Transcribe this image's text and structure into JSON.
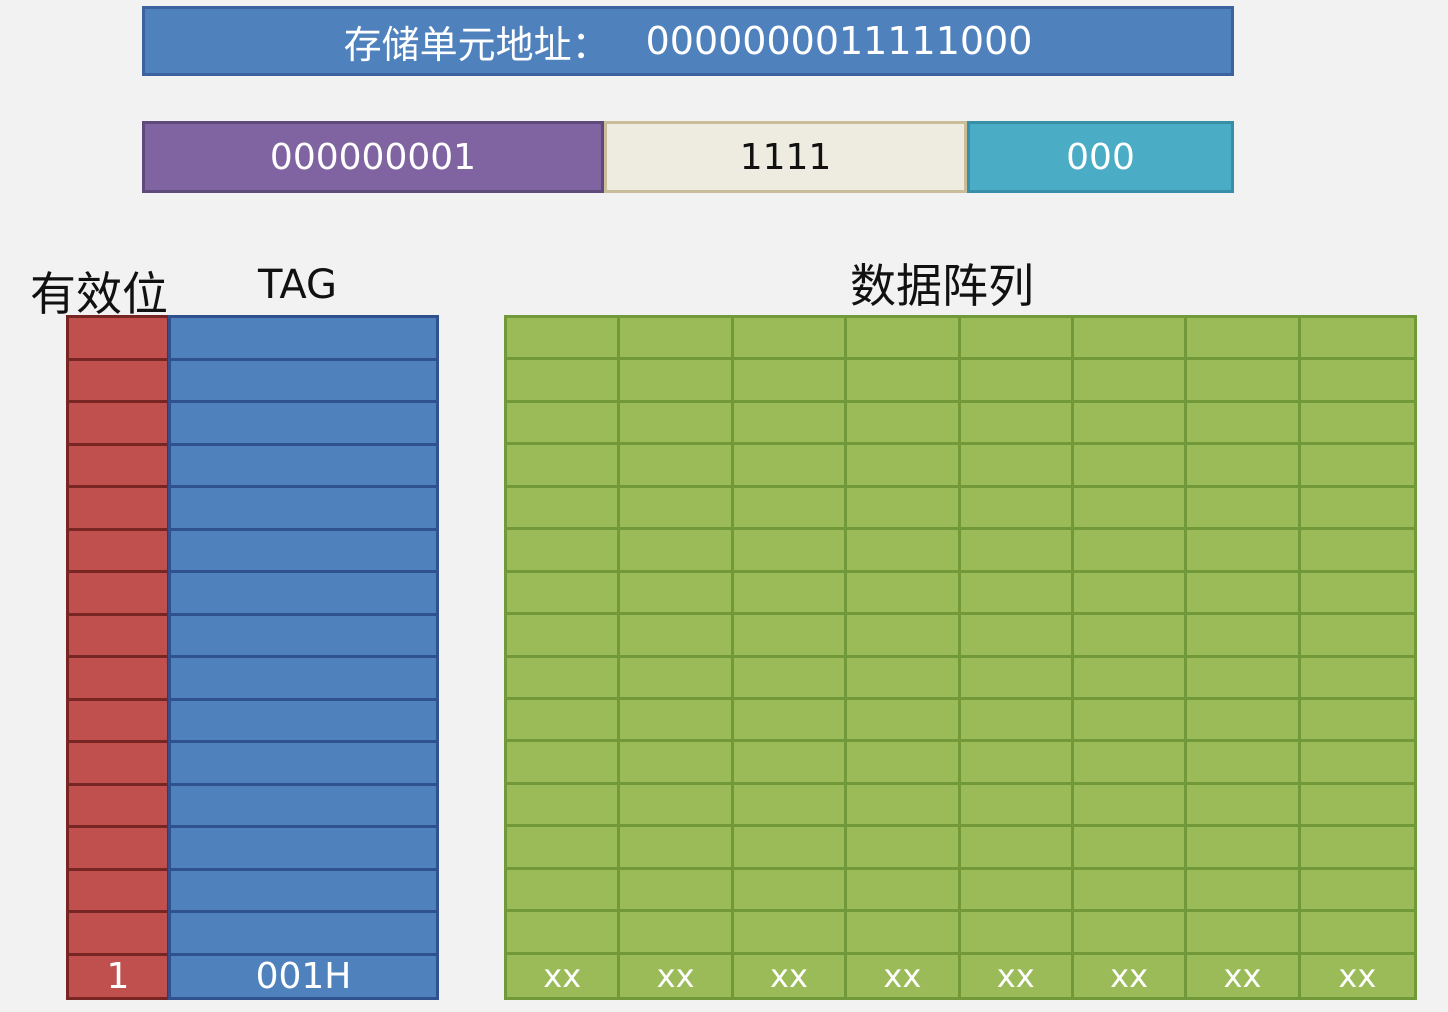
{
  "address": {
    "label": "存储单元地址：",
    "value": "0000000011111000"
  },
  "fields": {
    "tag": "000000001",
    "index": "1111",
    "offset": "000"
  },
  "headers": {
    "valid": "有效位",
    "tag": "TAG",
    "data": "数据阵列"
  },
  "rows": 16,
  "data_columns": 8,
  "highlight_row": {
    "valid": "1",
    "tag": "001H",
    "data": [
      "xx",
      "xx",
      "xx",
      "xx",
      "xx",
      "xx",
      "xx",
      "xx"
    ]
  },
  "colors": {
    "address_bar": "#4f81bd",
    "tag_field": "#8064a2",
    "index_field": "#eeece1",
    "offset_field": "#4bacc6",
    "valid_column": "#c0504d",
    "tag_column": "#4f81bd",
    "data_array": "#9bbb59"
  }
}
